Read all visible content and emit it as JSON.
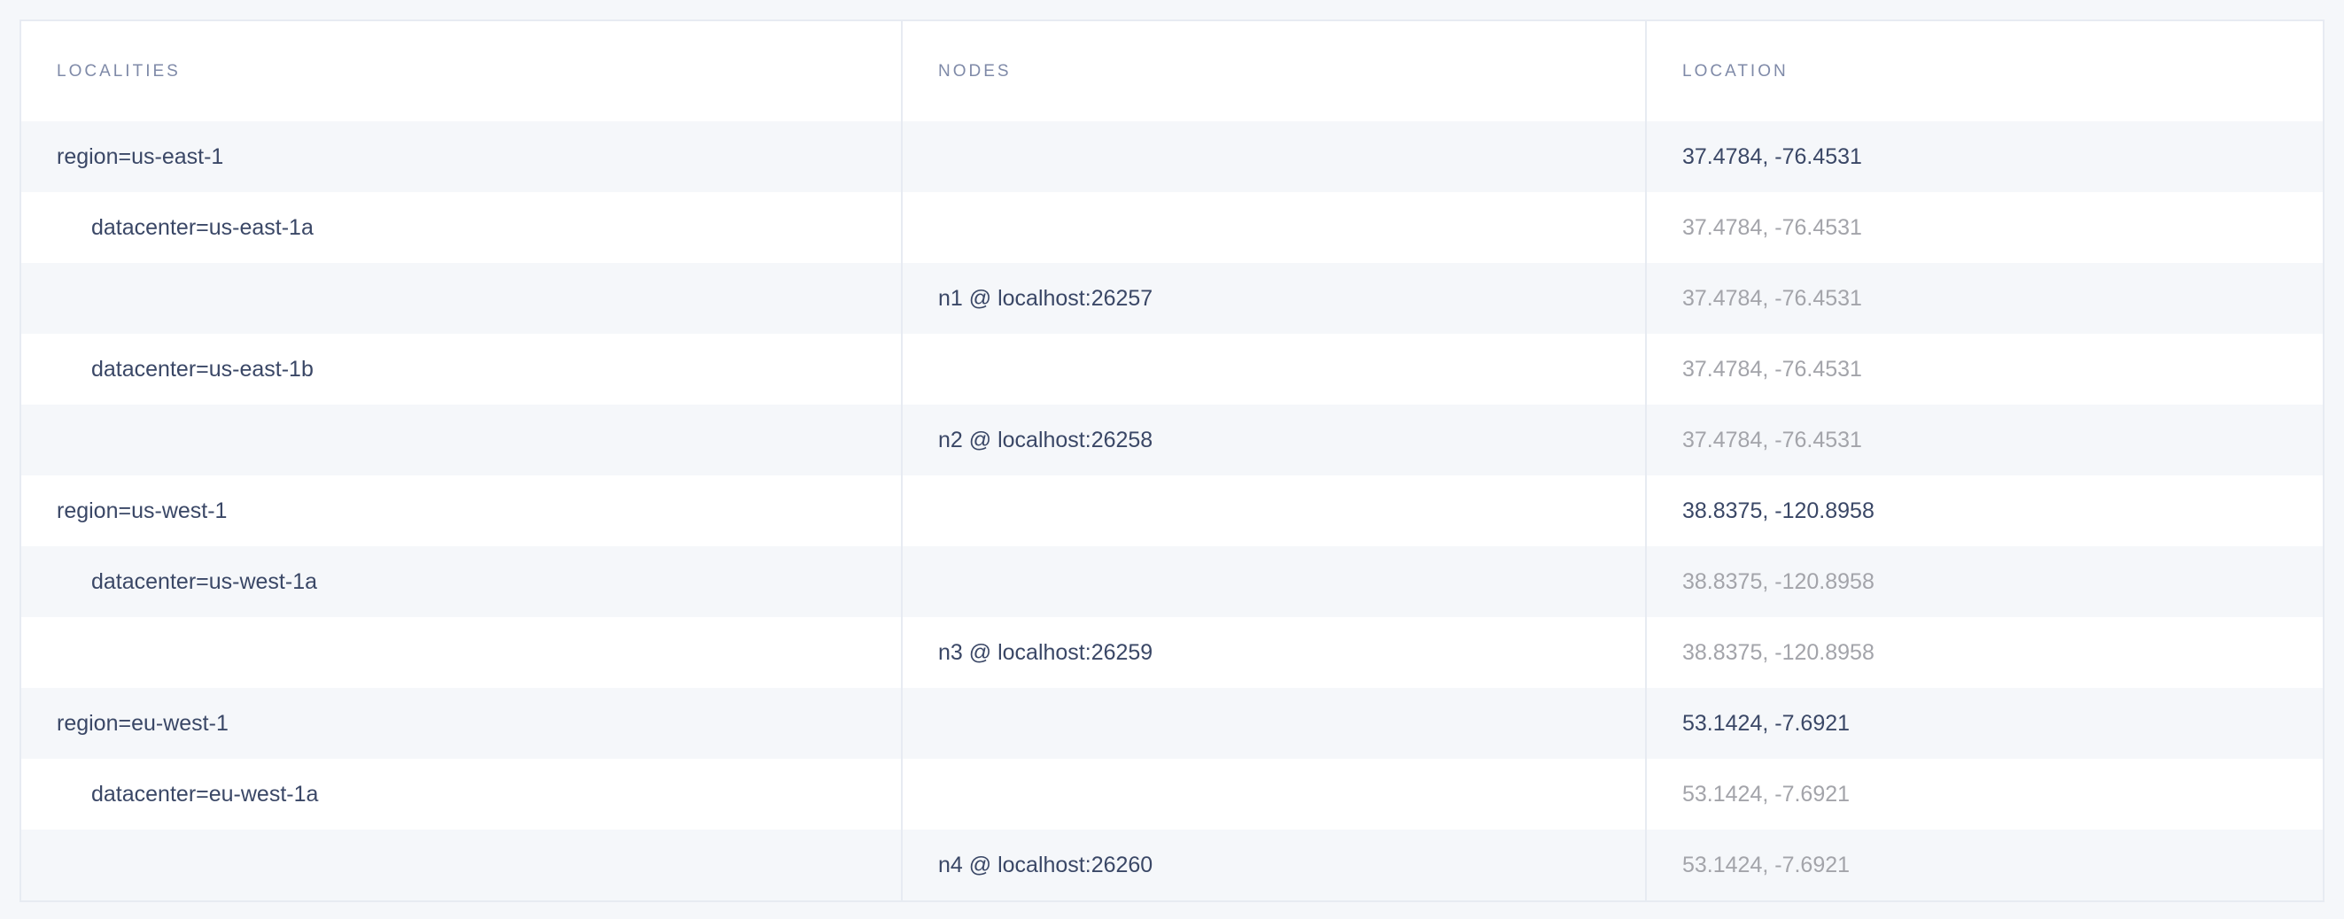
{
  "table": {
    "headers": [
      "LOCALITIES",
      "NODES",
      "LOCATION"
    ],
    "rows": [
      {
        "locality": "region=us-east-1",
        "level": 0,
        "node": "",
        "location": "37.4784, -76.4531",
        "muted": false
      },
      {
        "locality": "datacenter=us-east-1a",
        "level": 1,
        "node": "",
        "location": "37.4784, -76.4531",
        "muted": true
      },
      {
        "locality": "",
        "level": 2,
        "node": "n1 @ localhost:26257",
        "location": "37.4784, -76.4531",
        "muted": true
      },
      {
        "locality": "datacenter=us-east-1b",
        "level": 1,
        "node": "",
        "location": "37.4784, -76.4531",
        "muted": true
      },
      {
        "locality": "",
        "level": 2,
        "node": "n2 @ localhost:26258",
        "location": "37.4784, -76.4531",
        "muted": true
      },
      {
        "locality": "region=us-west-1",
        "level": 0,
        "node": "",
        "location": "38.8375, -120.8958",
        "muted": false
      },
      {
        "locality": "datacenter=us-west-1a",
        "level": 1,
        "node": "",
        "location": "38.8375, -120.8958",
        "muted": true
      },
      {
        "locality": "",
        "level": 2,
        "node": "n3 @ localhost:26259",
        "location": "38.8375, -120.8958",
        "muted": true
      },
      {
        "locality": "region=eu-west-1",
        "level": 0,
        "node": "",
        "location": "53.1424, -7.6921",
        "muted": false
      },
      {
        "locality": "datacenter=eu-west-1a",
        "level": 1,
        "node": "",
        "location": "53.1424, -7.6921",
        "muted": true
      },
      {
        "locality": "",
        "level": 2,
        "node": "n4 @ localhost:26260",
        "location": "53.1424, -7.6921",
        "muted": true
      }
    ]
  }
}
